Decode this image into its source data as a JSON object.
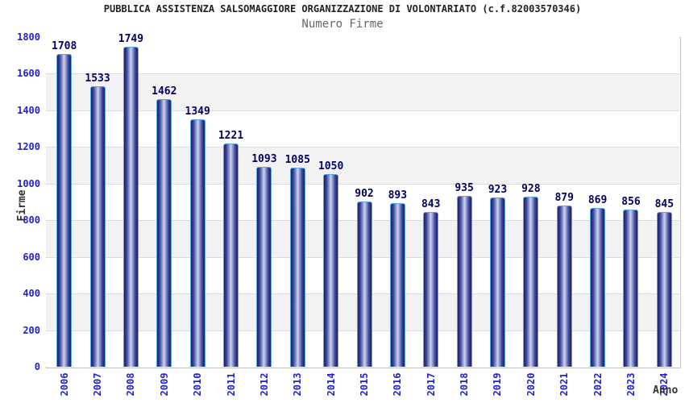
{
  "chart_data": {
    "type": "bar",
    "title": "PUBBLICA ASSISTENZA SALSOMAGGIORE ORGANIZZAZIONE DI VOLONTARIATO (c.f.82003570346)",
    "subtitle": "Numero Firme",
    "xlabel": "Anno",
    "ylabel": "Firme",
    "categories": [
      "2006",
      "2007",
      "2008",
      "2009",
      "2010",
      "2011",
      "2012",
      "2013",
      "2014",
      "2015",
      "2016",
      "2017",
      "2018",
      "2019",
      "2020",
      "2021",
      "2022",
      "2023",
      "2024"
    ],
    "values": [
      1708,
      1533,
      1749,
      1462,
      1349,
      1221,
      1093,
      1085,
      1050,
      902,
      893,
      843,
      935,
      923,
      928,
      879,
      869,
      856,
      845
    ],
    "ylim": [
      0,
      1800
    ],
    "yticks": [
      0,
      200,
      400,
      600,
      800,
      1000,
      1200,
      1400,
      1600,
      1800
    ],
    "grid": true,
    "legend_position": "none",
    "value_labels_shown": true
  },
  "colors": {
    "axis_text": "#2222cc",
    "value_text": "#000066",
    "title_text": "#222222",
    "subtitle_text": "#666666",
    "band_fill": "#f2f2f2",
    "gridline": "#dcdcdc",
    "plot_border": "#c4c4c4",
    "bar_edge": "#1b2166",
    "bar_mid": "#39449a",
    "bar_light": "#a6aedb",
    "bar_highlight": "#d3d8f0",
    "bar_border": "#58a6e8"
  }
}
